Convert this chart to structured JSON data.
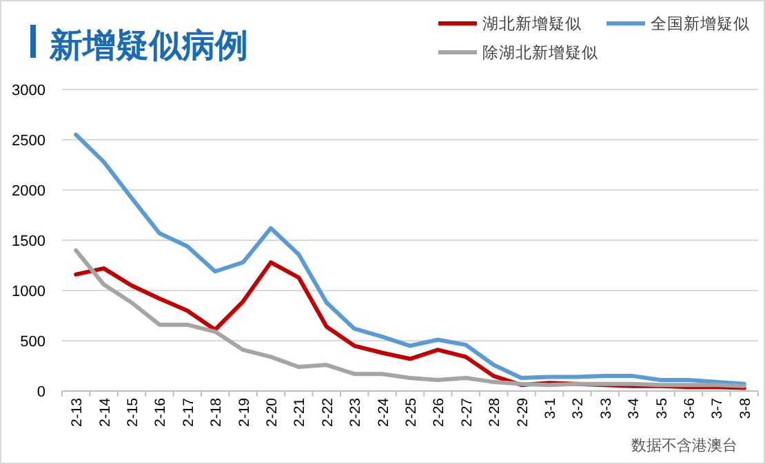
{
  "chart_data": {
    "type": "line",
    "title": "新增疑似病例",
    "annotations": [
      "数据不含港澳台"
    ],
    "categories": [
      "2-13",
      "2-14",
      "2-15",
      "2-16",
      "2-17",
      "2-18",
      "2-19",
      "2-20",
      "2-21",
      "2-22",
      "2-23",
      "2-24",
      "2-25",
      "2-26",
      "2-27",
      "2-28",
      "2-29",
      "3-1",
      "3-2",
      "3-3",
      "3-4",
      "3-5",
      "3-6",
      "3-7",
      "3-8"
    ],
    "series": [
      {
        "name": "湖北新增疑似",
        "color": "#c00000",
        "values": [
          1160,
          1220,
          1050,
          920,
          800,
          610,
          890,
          1280,
          1130,
          640,
          450,
          380,
          320,
          410,
          340,
          150,
          60,
          80,
          70,
          60,
          50,
          50,
          40,
          40,
          30
        ]
      },
      {
        "name": "全国新增疑似",
        "color": "#5b9bd5",
        "values": [
          2550,
          2280,
          1920,
          1570,
          1440,
          1190,
          1280,
          1620,
          1360,
          880,
          620,
          540,
          450,
          510,
          460,
          260,
          130,
          140,
          140,
          150,
          150,
          110,
          110,
          90,
          70
        ]
      },
      {
        "name": "除湖北新增疑似",
        "color": "#a5a5a5",
        "values": [
          1400,
          1060,
          880,
          660,
          660,
          590,
          410,
          340,
          240,
          260,
          170,
          170,
          130,
          110,
          130,
          90,
          70,
          60,
          70,
          70,
          70,
          60,
          60,
          60,
          50
        ]
      }
    ],
    "ylim": [
      0,
      3000
    ],
    "yticks": [
      0,
      500,
      1000,
      1500,
      2000,
      2500,
      3000
    ],
    "grid": "y",
    "legend": "top right",
    "marker": "none",
    "line_style": "solid"
  }
}
